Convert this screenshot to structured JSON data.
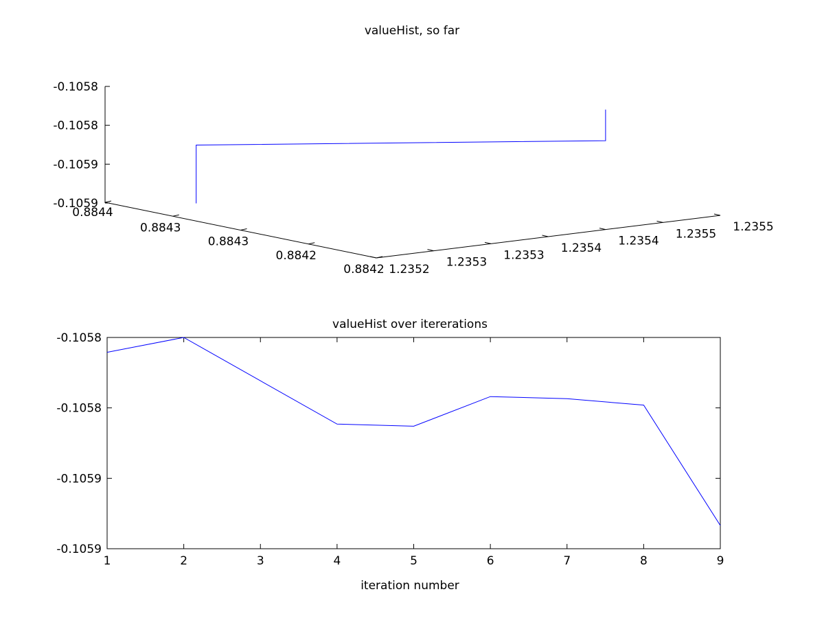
{
  "chart_data": [
    {
      "type": "line3d",
      "title": "valueHist, so far",
      "xlabel": "",
      "ylabel": "",
      "zlabel": "",
      "z_tick_labels": [
        "-0.1058",
        "-0.1058",
        "-0.1059",
        "-0.1059"
      ],
      "y_tick_labels": [
        "0.8844",
        "0.8843",
        "0.8843",
        "0.8842",
        "0.8842"
      ],
      "x_tick_labels": [
        "1.2352",
        "1.2353",
        "1.2353",
        "1.2354",
        "1.2354",
        "1.2355",
        "1.2355"
      ],
      "grid": false,
      "series": [
        {
          "color": "#0000ff",
          "x": [
            1.23521,
            1.23521,
            1.23546,
            1.23546
          ],
          "y": [
            0.88437,
            0.88437,
            0.88423,
            0.88423
          ],
          "z": [
            -0.105885,
            -0.105823,
            -0.105823,
            -0.10579
          ]
        }
      ]
    },
    {
      "type": "line",
      "title": "valueHist over itererations",
      "xlabel": "iteration number",
      "ylabel": "",
      "xlim": [
        1,
        9
      ],
      "ylim": [
        -0.1059,
        -0.1058
      ],
      "x_tick_values": [
        1,
        2,
        3,
        4,
        5,
        6,
        7,
        8,
        9
      ],
      "x_tick_labels": [
        "1",
        "2",
        "3",
        "4",
        "5",
        "6",
        "7",
        "8",
        "9"
      ],
      "y_tick_values": [
        -0.1058,
        -0.10583333,
        -0.10586667,
        -0.1059
      ],
      "y_tick_labels": [
        "-0.1058",
        "-0.1058",
        "-0.1059",
        "-0.1059"
      ],
      "grid": false,
      "series": [
        {
          "color": "#0000ff",
          "x": [
            1,
            2,
            4,
            5,
            6,
            7,
            8,
            9
          ],
          "y": [
            -0.105807,
            -0.1058,
            -0.105841,
            -0.105842,
            -0.105828,
            -0.105829,
            -0.105832,
            -0.105889
          ]
        }
      ]
    }
  ]
}
